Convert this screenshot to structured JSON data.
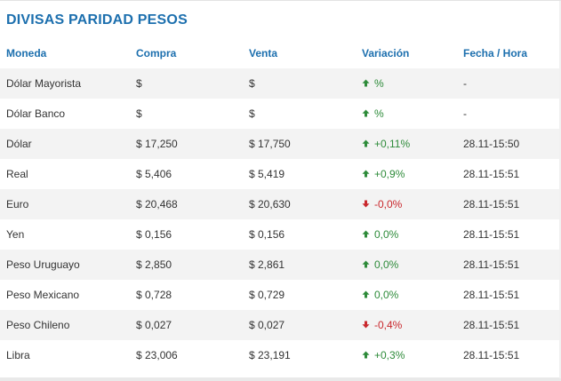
{
  "title": "DIVISAS PARIDAD PESOS",
  "colors": {
    "accent": "#1c6fae",
    "up": "#2e8b3a",
    "down": "#c9282d",
    "stripe": "#f3f3f3"
  },
  "columns": [
    "Moneda",
    "Compra",
    "Venta",
    "Variación",
    "Fecha / Hora"
  ],
  "rows": [
    {
      "moneda": "Dólar Mayorista",
      "compra": "$",
      "venta": "$",
      "variacion": "%",
      "direction": "up",
      "fecha": "-"
    },
    {
      "moneda": "Dólar Banco",
      "compra": "$",
      "venta": "$",
      "variacion": "%",
      "direction": "up",
      "fecha": "-"
    },
    {
      "moneda": "Dólar",
      "compra": "$ 17,250",
      "venta": "$ 17,750",
      "variacion": "+0,11%",
      "direction": "up",
      "fecha": "28.11-15:50"
    },
    {
      "moneda": "Real",
      "compra": "$ 5,406",
      "venta": "$ 5,419",
      "variacion": "+0,9%",
      "direction": "up",
      "fecha": "28.11-15:51"
    },
    {
      "moneda": "Euro",
      "compra": "$ 20,468",
      "venta": "$ 20,630",
      "variacion": "-0,0%",
      "direction": "down",
      "fecha": "28.11-15:51"
    },
    {
      "moneda": "Yen",
      "compra": "$ 0,156",
      "venta": "$ 0,156",
      "variacion": "0,0%",
      "direction": "up",
      "fecha": "28.11-15:51"
    },
    {
      "moneda": "Peso Uruguayo",
      "compra": "$ 2,850",
      "venta": "$ 2,861",
      "variacion": "0,0%",
      "direction": "up",
      "fecha": "28.11-15:51"
    },
    {
      "moneda": "Peso Mexicano",
      "compra": "$ 0,728",
      "venta": "$ 0,729",
      "variacion": "0,0%",
      "direction": "up",
      "fecha": "28.11-15:51"
    },
    {
      "moneda": "Peso Chileno",
      "compra": "$ 0,027",
      "venta": "$ 0,027",
      "variacion": "-0,4%",
      "direction": "down",
      "fecha": "28.11-15:51"
    },
    {
      "moneda": "Libra",
      "compra": "$ 23,006",
      "venta": "$ 23,191",
      "variacion": "+0,3%",
      "direction": "up",
      "fecha": "28.11-15:51"
    }
  ]
}
